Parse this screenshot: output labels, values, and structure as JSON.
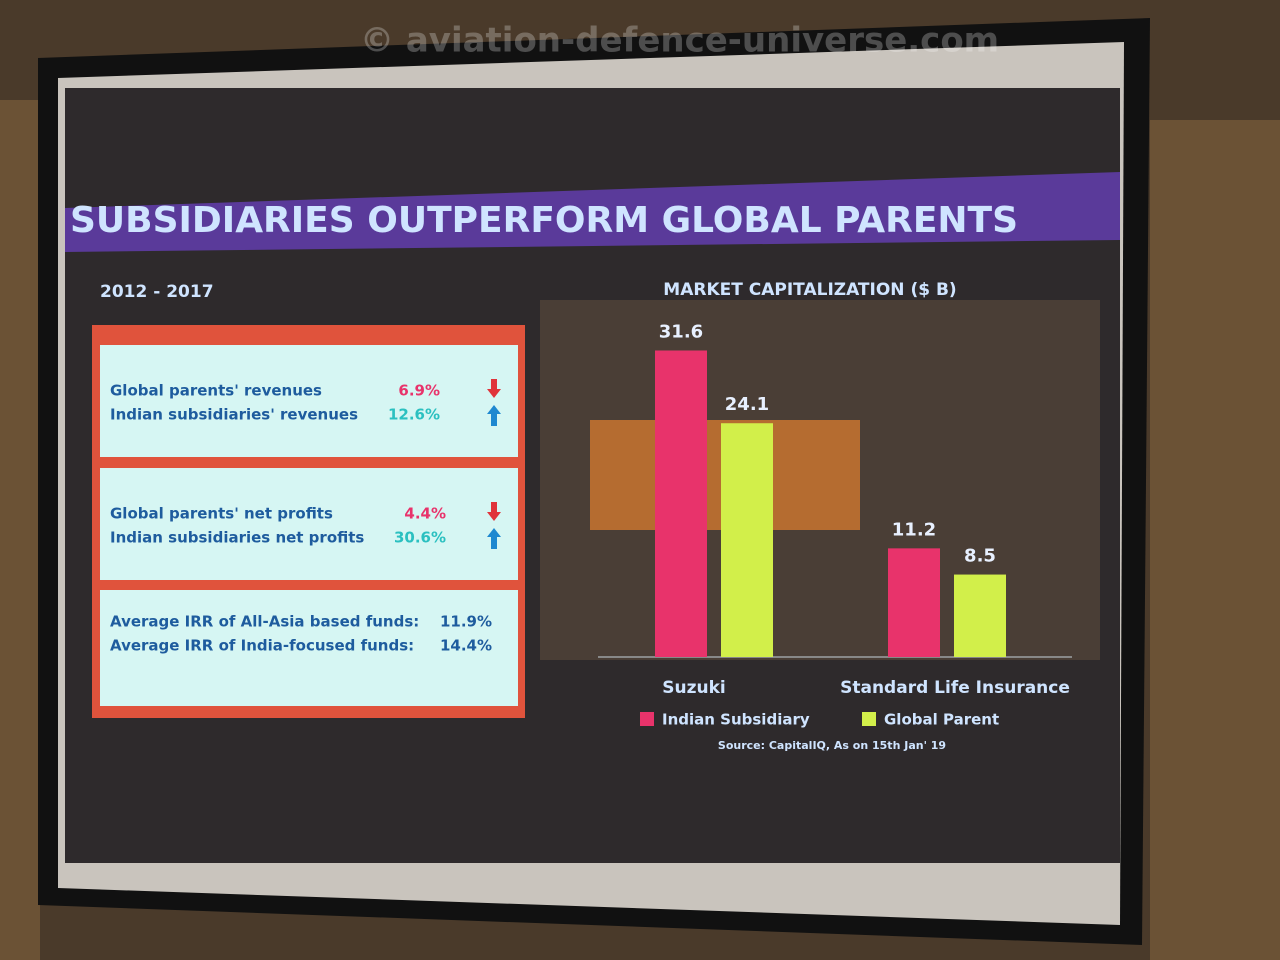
{
  "watermark": "© aviation-defence-universe.com",
  "slide": {
    "title": "SUBSIDIARIES OUTPERFORM GLOBAL PARENTS",
    "period": "2012 - 2017",
    "boxes": [
      [
        {
          "label": "Global parents' revenues",
          "value": "6.9%"
        },
        {
          "label": "Indian subsidiaries' revenues",
          "value": "12.6%"
        }
      ],
      [
        {
          "label": "Global parents' net profits",
          "value": "4.4%"
        },
        {
          "label": "Indian subsidiaries net profits",
          "value": "30.6%"
        }
      ],
      [
        {
          "label": "Average IRR of All-Asia based funds:",
          "value": "11.9%"
        },
        {
          "label": "Average IRR of India-focused funds:",
          "value": "14.4%"
        }
      ]
    ]
  },
  "chart_data": {
    "type": "bar",
    "title": "MARKET CAPITALIZATION ($ B)",
    "categories": [
      "Suzuki",
      "Standard Life Insurance"
    ],
    "series": [
      {
        "name": "Indian Subsidiary",
        "color": "#e8336b",
        "values": [
          31.6,
          11.2
        ]
      },
      {
        "name": "Global Parent",
        "color": "#d2ef4a",
        "values": [
          24.1,
          8.5
        ]
      }
    ],
    "source": "Source: CapitalIQ, As on 15th Jan' 19"
  }
}
